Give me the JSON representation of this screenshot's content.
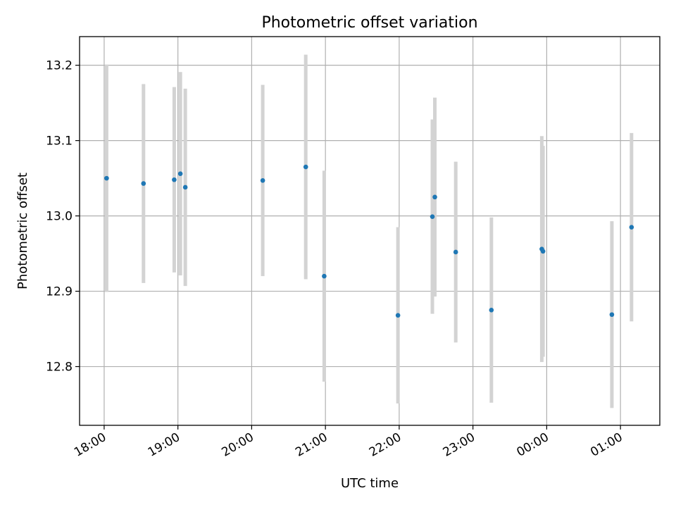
{
  "chart_data": {
    "type": "scatter",
    "title": "Photometric offset variation",
    "xlabel": "UTC time",
    "ylabel": "Photometric offset",
    "grid": true,
    "x_unit": "hours",
    "xlim": [
      "17:40",
      "25:32"
    ],
    "ylim": [
      12.722,
      13.238
    ],
    "x_ticks": [
      {
        "label": "18:00",
        "value": "18:00"
      },
      {
        "label": "19:00",
        "value": "19:00"
      },
      {
        "label": "20:00",
        "value": "20:00"
      },
      {
        "label": "21:00",
        "value": "21:00"
      },
      {
        "label": "22:00",
        "value": "22:00"
      },
      {
        "label": "23:00",
        "value": "23:00"
      },
      {
        "label": "00:00",
        "value": "24:00"
      },
      {
        "label": "01:00",
        "value": "25:00"
      }
    ],
    "y_ticks": [
      {
        "label": "12.8",
        "value": 12.8
      },
      {
        "label": "12.9",
        "value": 12.9
      },
      {
        "label": "13.0",
        "value": 13.0
      },
      {
        "label": "13.1",
        "value": 13.1
      },
      {
        "label": "13.2",
        "value": 13.2
      }
    ],
    "colors": {
      "point": "#1f77b4",
      "errorbar": "#d3d3d3"
    },
    "points": [
      {
        "x": "18:02",
        "y": 13.05,
        "err": 0.151
      },
      {
        "x": "18:32",
        "y": 13.043,
        "err": 0.132
      },
      {
        "x": "18:57",
        "y": 13.048,
        "err": 0.123
      },
      {
        "x": "19:02",
        "y": 13.056,
        "err": 0.135
      },
      {
        "x": "19:06",
        "y": 13.038,
        "err": 0.131
      },
      {
        "x": "20:09",
        "y": 13.047,
        "err": 0.127
      },
      {
        "x": "20:44",
        "y": 13.065,
        "err": 0.149
      },
      {
        "x": "20:59",
        "y": 12.92,
        "err": 0.14
      },
      {
        "x": "21:59",
        "y": 12.868,
        "err": 0.117
      },
      {
        "x": "22:27",
        "y": 12.999,
        "err": 0.129
      },
      {
        "x": "22:29",
        "y": 13.025,
        "err": 0.132
      },
      {
        "x": "22:46",
        "y": 12.952,
        "err": 0.12
      },
      {
        "x": "23:15",
        "y": 12.875,
        "err": 0.123
      },
      {
        "x": "23:56",
        "y": 12.956,
        "err": 0.15
      },
      {
        "x": "23:57",
        "y": 12.953,
        "err": 0.14
      },
      {
        "x": "24:53",
        "y": 12.869,
        "err": 0.124
      },
      {
        "x": "25:09",
        "y": 12.985,
        "err": 0.125
      }
    ]
  }
}
